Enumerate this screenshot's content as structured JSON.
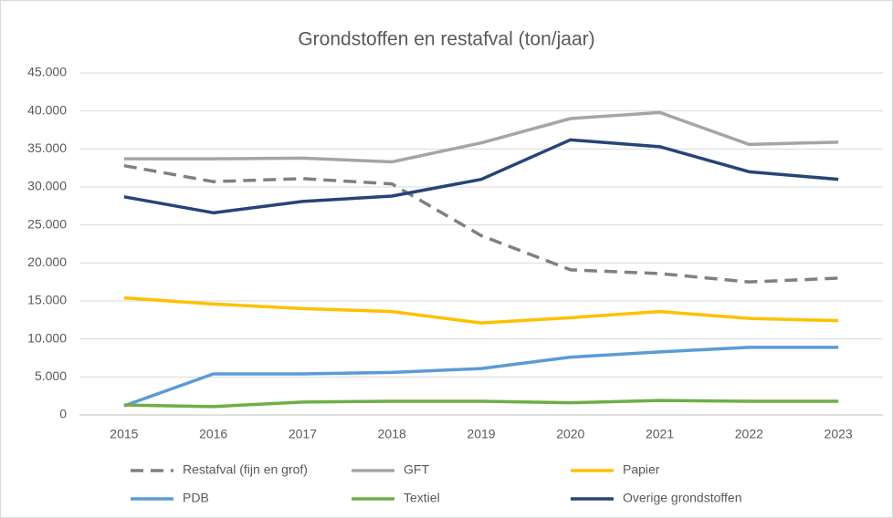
{
  "chart_data": {
    "type": "line",
    "title": "Grondstoffen en restafval (ton/jaar)",
    "categories": [
      "2015",
      "2016",
      "2017",
      "2018",
      "2019",
      "2020",
      "2021",
      "2022",
      "2023"
    ],
    "series": [
      {
        "name": "Restafval (fijn en grof)",
        "color": "#808080",
        "dashed": true,
        "values": [
          32800,
          30700,
          31100,
          30400,
          23600,
          19100,
          18600,
          17500,
          18000
        ]
      },
      {
        "name": "GFT",
        "color": "#a5a5a5",
        "values": [
          33700,
          33700,
          33800,
          33300,
          35800,
          39000,
          39800,
          35600,
          35900
        ]
      },
      {
        "name": "Papier",
        "color": "#ffc000",
        "values": [
          15400,
          14600,
          14000,
          13600,
          12100,
          12800,
          13600,
          12700,
          12400
        ]
      },
      {
        "name": "PDB",
        "color": "#5b9bd5",
        "values": [
          1200,
          5400,
          5400,
          5600,
          6100,
          7600,
          8300,
          8900,
          8900
        ]
      },
      {
        "name": "Textiel",
        "color": "#70ad47",
        "values": [
          1300,
          1100,
          1700,
          1800,
          1800,
          1600,
          1900,
          1800,
          1800
        ]
      },
      {
        "name": "Overige grondstoffen",
        "color": "#264478",
        "values": [
          28700,
          26600,
          28100,
          28800,
          31000,
          36200,
          35300,
          32000,
          31000
        ]
      }
    ],
    "ylim": [
      0,
      45000
    ],
    "yticks": [
      0,
      {
        "value": 5000,
        "label": "5.000"
      },
      {
        "value": 10000,
        "label": "10.000"
      },
      {
        "value": 15000,
        "label": "15.000"
      },
      {
        "value": 20000,
        "label": "20.000"
      },
      {
        "value": 25000,
        "label": "25.000"
      },
      {
        "value": 30000,
        "label": "30.000"
      },
      {
        "value": 35000,
        "label": "35.000"
      },
      {
        "value": 40000,
        "label": "40.000"
      },
      {
        "value": 45000,
        "label": "45.000"
      }
    ],
    "grid": true,
    "legend": "bottom"
  }
}
